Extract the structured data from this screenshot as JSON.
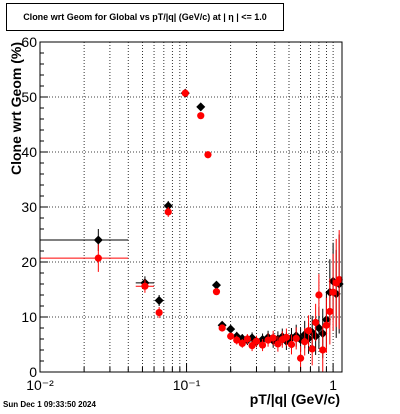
{
  "chart_data": {
    "type": "scatter",
    "title": "Clone wrt Geom for Global vs pT/|q| (GeV/c) at |  η  | <= 1.0",
    "xlabel": "pT/|q| (GeV/c)",
    "ylabel": "Clone wrt Geom (%)",
    "x_scale": "log",
    "xlim": [
      0.01,
      1.15
    ],
    "ylim": [
      0,
      60
    ],
    "y_ticks": [
      0,
      10,
      20,
      30,
      40,
      50,
      60
    ],
    "x_ticks": [
      {
        "value": 0.01,
        "label": "10⁻²"
      },
      {
        "value": 0.1,
        "label": "10⁻¹"
      },
      {
        "value": 1,
        "label": "1"
      }
    ],
    "grid": true,
    "series": [
      {
        "marker": "diamond",
        "color": "#000000",
        "points": [
          {
            "x": 0.025,
            "y": 24.0,
            "xerr": [
              0.01,
              0.04
            ],
            "yerr": 2.0
          },
          {
            "x": 0.052,
            "y": 16.2,
            "xerr": [
              0.045,
              0.06
            ],
            "yerr": 1.2
          },
          {
            "x": 0.065,
            "y": 13.0,
            "yerr": 1.0
          },
          {
            "x": 0.075,
            "y": 30.2,
            "yerr": 0.9
          },
          {
            "x": 0.098,
            "y": 50.7,
            "yerr": 0.6
          },
          {
            "x": 0.125,
            "y": 48.2,
            "yerr": 0.6
          },
          {
            "x": 0.16,
            "y": 15.8,
            "yerr": 0.6
          },
          {
            "x": 0.175,
            "y": 8.5,
            "yerr": 0.6
          },
          {
            "x": 0.2,
            "y": 7.8,
            "yerr": 0.6
          },
          {
            "x": 0.22,
            "y": 6.5,
            "yerr": 0.8
          },
          {
            "x": 0.24,
            "y": 6.1,
            "yerr": 0.8
          },
          {
            "x": 0.26,
            "y": 5.8,
            "yerr": 0.9
          },
          {
            "x": 0.28,
            "y": 6.2,
            "yerr": 1.0
          },
          {
            "x": 0.3,
            "y": 5.5,
            "yerr": 1.0
          },
          {
            "x": 0.33,
            "y": 5.9,
            "yerr": 1.1
          },
          {
            "x": 0.36,
            "y": 6.3,
            "yerr": 1.2
          },
          {
            "x": 0.39,
            "y": 5.7,
            "yerr": 1.3
          },
          {
            "x": 0.42,
            "y": 6.0,
            "yerr": 1.4
          },
          {
            "x": 0.45,
            "y": 6.4,
            "yerr": 1.5
          },
          {
            "x": 0.48,
            "y": 5.6,
            "yerr": 1.6
          },
          {
            "x": 0.52,
            "y": 6.2,
            "yerr": 1.8
          },
          {
            "x": 0.56,
            "y": 6.6,
            "yerr": 2.0
          },
          {
            "x": 0.6,
            "y": 5.9,
            "yerr": 2.2
          },
          {
            "x": 0.64,
            "y": 6.8,
            "yerr": 2.5
          },
          {
            "x": 0.68,
            "y": 6.1,
            "yerr": 2.8
          },
          {
            "x": 0.72,
            "y": 7.2,
            "yerr": 3.0
          },
          {
            "x": 0.76,
            "y": 6.5,
            "yerr": 3.4
          },
          {
            "x": 0.8,
            "y": 8.0,
            "yerr": 3.8
          },
          {
            "x": 0.85,
            "y": 7.0,
            "yerr": 4.5
          },
          {
            "x": 0.9,
            "y": 9.5,
            "yerr": 5.0
          },
          {
            "x": 0.95,
            "y": 14.5,
            "yerr": 6.0
          },
          {
            "x": 1.0,
            "y": 16.5,
            "yerr": 7.0
          },
          {
            "x": 1.05,
            "y": 14.2,
            "yerr": 8.0
          },
          {
            "x": 1.1,
            "y": 16.0,
            "yerr": 9.0
          }
        ]
      },
      {
        "marker": "circle",
        "color": "#ff0000",
        "points": [
          {
            "x": 0.025,
            "y": 20.7,
            "xerr": [
              0.01,
              0.04
            ],
            "yerr": 2.5
          },
          {
            "x": 0.052,
            "y": 15.6,
            "xerr": [
              0.045,
              0.06
            ],
            "yerr": 1.2
          },
          {
            "x": 0.065,
            "y": 10.8,
            "yerr": 1.0
          },
          {
            "x": 0.075,
            "y": 29.1,
            "yerr": 0.9
          },
          {
            "x": 0.098,
            "y": 50.7,
            "yerr": 0.6
          },
          {
            "x": 0.125,
            "y": 46.6,
            "yerr": 0.6
          },
          {
            "x": 0.14,
            "y": 39.5,
            "yerr": 0.6
          },
          {
            "x": 0.16,
            "y": 14.6,
            "yerr": 0.6
          },
          {
            "x": 0.175,
            "y": 8.0,
            "yerr": 0.6
          },
          {
            "x": 0.2,
            "y": 6.5,
            "yerr": 0.6
          },
          {
            "x": 0.22,
            "y": 5.8,
            "yerr": 0.8
          },
          {
            "x": 0.24,
            "y": 5.2,
            "yerr": 0.8
          },
          {
            "x": 0.26,
            "y": 6.0,
            "yerr": 0.9
          },
          {
            "x": 0.28,
            "y": 4.8,
            "yerr": 1.0
          },
          {
            "x": 0.3,
            "y": 5.6,
            "yerr": 1.0
          },
          {
            "x": 0.33,
            "y": 4.9,
            "yerr": 1.1
          },
          {
            "x": 0.36,
            "y": 5.8,
            "yerr": 1.2
          },
          {
            "x": 0.39,
            "y": 6.2,
            "yerr": 1.3
          },
          {
            "x": 0.42,
            "y": 5.1,
            "yerr": 1.4
          },
          {
            "x": 0.45,
            "y": 5.9,
            "yerr": 1.5
          },
          {
            "x": 0.48,
            "y": 6.3,
            "yerr": 1.6
          },
          {
            "x": 0.52,
            "y": 5.0,
            "yerr": 1.8
          },
          {
            "x": 0.56,
            "y": 6.1,
            "yerr": 2.0
          },
          {
            "x": 0.6,
            "y": 2.5,
            "yerr": 2.2
          },
          {
            "x": 0.64,
            "y": 5.5,
            "yerr": 2.5
          },
          {
            "x": 0.68,
            "y": 7.5,
            "yerr": 2.8
          },
          {
            "x": 0.72,
            "y": 4.2,
            "yerr": 3.0
          },
          {
            "x": 0.76,
            "y": 9.0,
            "yerr": 3.4
          },
          {
            "x": 0.8,
            "y": 14.0,
            "yerr": 3.8
          },
          {
            "x": 0.85,
            "y": 4.0,
            "yerr": 4.5
          },
          {
            "x": 0.9,
            "y": 8.5,
            "yerr": 5.0
          },
          {
            "x": 0.95,
            "y": 11.0,
            "yerr": 6.0
          },
          {
            "x": 1.0,
            "y": 14.5,
            "yerr": 7.0
          },
          {
            "x": 1.05,
            "y": 16.2,
            "yerr": 8.0
          },
          {
            "x": 1.1,
            "y": 16.8,
            "yerr": 9.0
          }
        ]
      }
    ]
  },
  "timestamp": "Sun Dec  1 09:33:50 2024"
}
